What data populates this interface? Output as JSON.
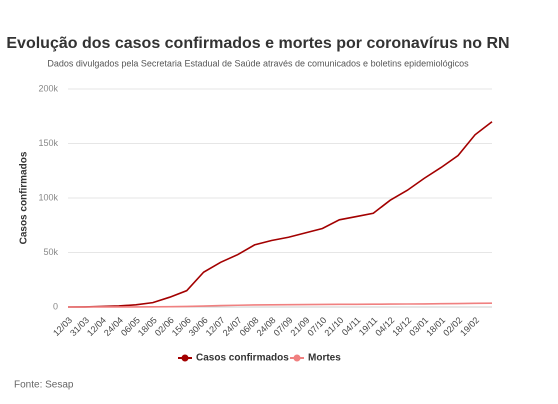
{
  "chart_data": {
    "type": "line",
    "title": "Evolução dos casos confirmados e mortes por coronavírus no RN",
    "subtitle": "Dados divulgados pela Secretaria Estadual de Saúde através de comunicados e boletins epidemiológicos",
    "y_label": "Casos confirmados",
    "source": "Fonte: Sesap",
    "categories": [
      "12/03",
      "31/03",
      "12/04",
      "24/04",
      "06/05",
      "18/05",
      "02/06",
      "15/06",
      "30/06",
      "12/07",
      "24/07",
      "06/08",
      "24/08",
      "07/09",
      "21/09",
      "07/10",
      "21/10",
      "04/11",
      "19/11",
      "04/12",
      "18/12",
      "03/01",
      "18/01",
      "02/02",
      "19/02",
      null
    ],
    "series": [
      {
        "name": "Casos confirmados",
        "color": "#a30000",
        "values": [
          0,
          100,
          500,
          1000,
          2000,
          4000,
          9000,
          15000,
          32000,
          41000,
          48000,
          57000,
          61000,
          64000,
          68000,
          72000,
          80000,
          83000,
          86000,
          98000,
          107000,
          118000,
          128000,
          139000,
          158000,
          170000
        ]
      },
      {
        "name": "Mortes",
        "color": "#f08080",
        "values": [
          0,
          5,
          20,
          40,
          80,
          150,
          300,
          500,
          900,
          1300,
          1600,
          1900,
          2050,
          2150,
          2250,
          2350,
          2450,
          2500,
          2550,
          2650,
          2750,
          2850,
          3000,
          3150,
          3350,
          3500
        ]
      }
    ],
    "ylim": [
      0,
      200000
    ],
    "yticks": [
      0,
      {
        "value": 50000,
        "label": "50k"
      },
      {
        "value": 100000,
        "label": "100k"
      },
      {
        "value": 150000,
        "label": "150k"
      },
      {
        "value": 200000,
        "label": "200k"
      }
    ],
    "grid": true,
    "legend": "bottom"
  }
}
